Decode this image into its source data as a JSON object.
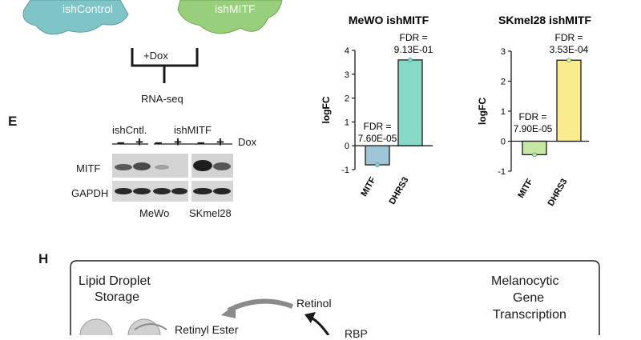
{
  "panel_labels": {
    "e": "E",
    "h": "H"
  },
  "cells": {
    "left": "ishControl",
    "right": "ishMITF"
  },
  "workflow": {
    "treatment": "+Dox",
    "assay": "RNA-seq"
  },
  "western": {
    "group_ctrl": "ishCntl.",
    "group_mitf": "ishMITF",
    "dox_label": "Dox",
    "lane_signs": [
      "–",
      "+",
      "–",
      "+",
      "–",
      "+"
    ],
    "rows": [
      "MITF",
      "GAPDH"
    ],
    "cell_lines": [
      "MeWo",
      "SKmel28"
    ]
  },
  "chart_data": [
    {
      "type": "bar",
      "title": "MeWO ishMITF",
      "ylabel": "logFC",
      "categories": [
        "MITF",
        "DHRS3"
      ],
      "values": [
        -0.8,
        3.6
      ],
      "ylim": [
        -1,
        4
      ],
      "yticks": [
        "4",
        "3",
        "2",
        "1",
        "0",
        "-1"
      ],
      "bar_colors": [
        "#9fc6d6",
        "#86d9c8"
      ],
      "annotations": [
        {
          "line1": "FDR =",
          "line2": "7.60E-05"
        },
        {
          "line1": "FDR =",
          "line2": "9.13E-01"
        }
      ]
    },
    {
      "type": "bar",
      "title": "SKmel28 ishMITF",
      "ylabel": "logFC",
      "categories": [
        "MITF",
        "DHRS3"
      ],
      "values": [
        -0.45,
        2.7
      ],
      "ylim": [
        -1,
        3
      ],
      "yticks": [
        "3",
        "2",
        "1",
        "0",
        "-1"
      ],
      "bar_colors": [
        "#c6e6a4",
        "#f8ec8c"
      ],
      "annotations": [
        {
          "line1": "FDR =",
          "line2": "7.90E-05"
        },
        {
          "line1": "FDR =",
          "line2": "3.53E-04"
        }
      ]
    }
  ],
  "diagram": {
    "storage": [
      "Lipid Droplet",
      "Storage"
    ],
    "transcription": [
      "Melanocytic",
      "Gene",
      "Transcription"
    ],
    "retinol": "Retinol",
    "retinyl_ester": "Retinyl Ester",
    "rbp_partial": "RBP"
  }
}
